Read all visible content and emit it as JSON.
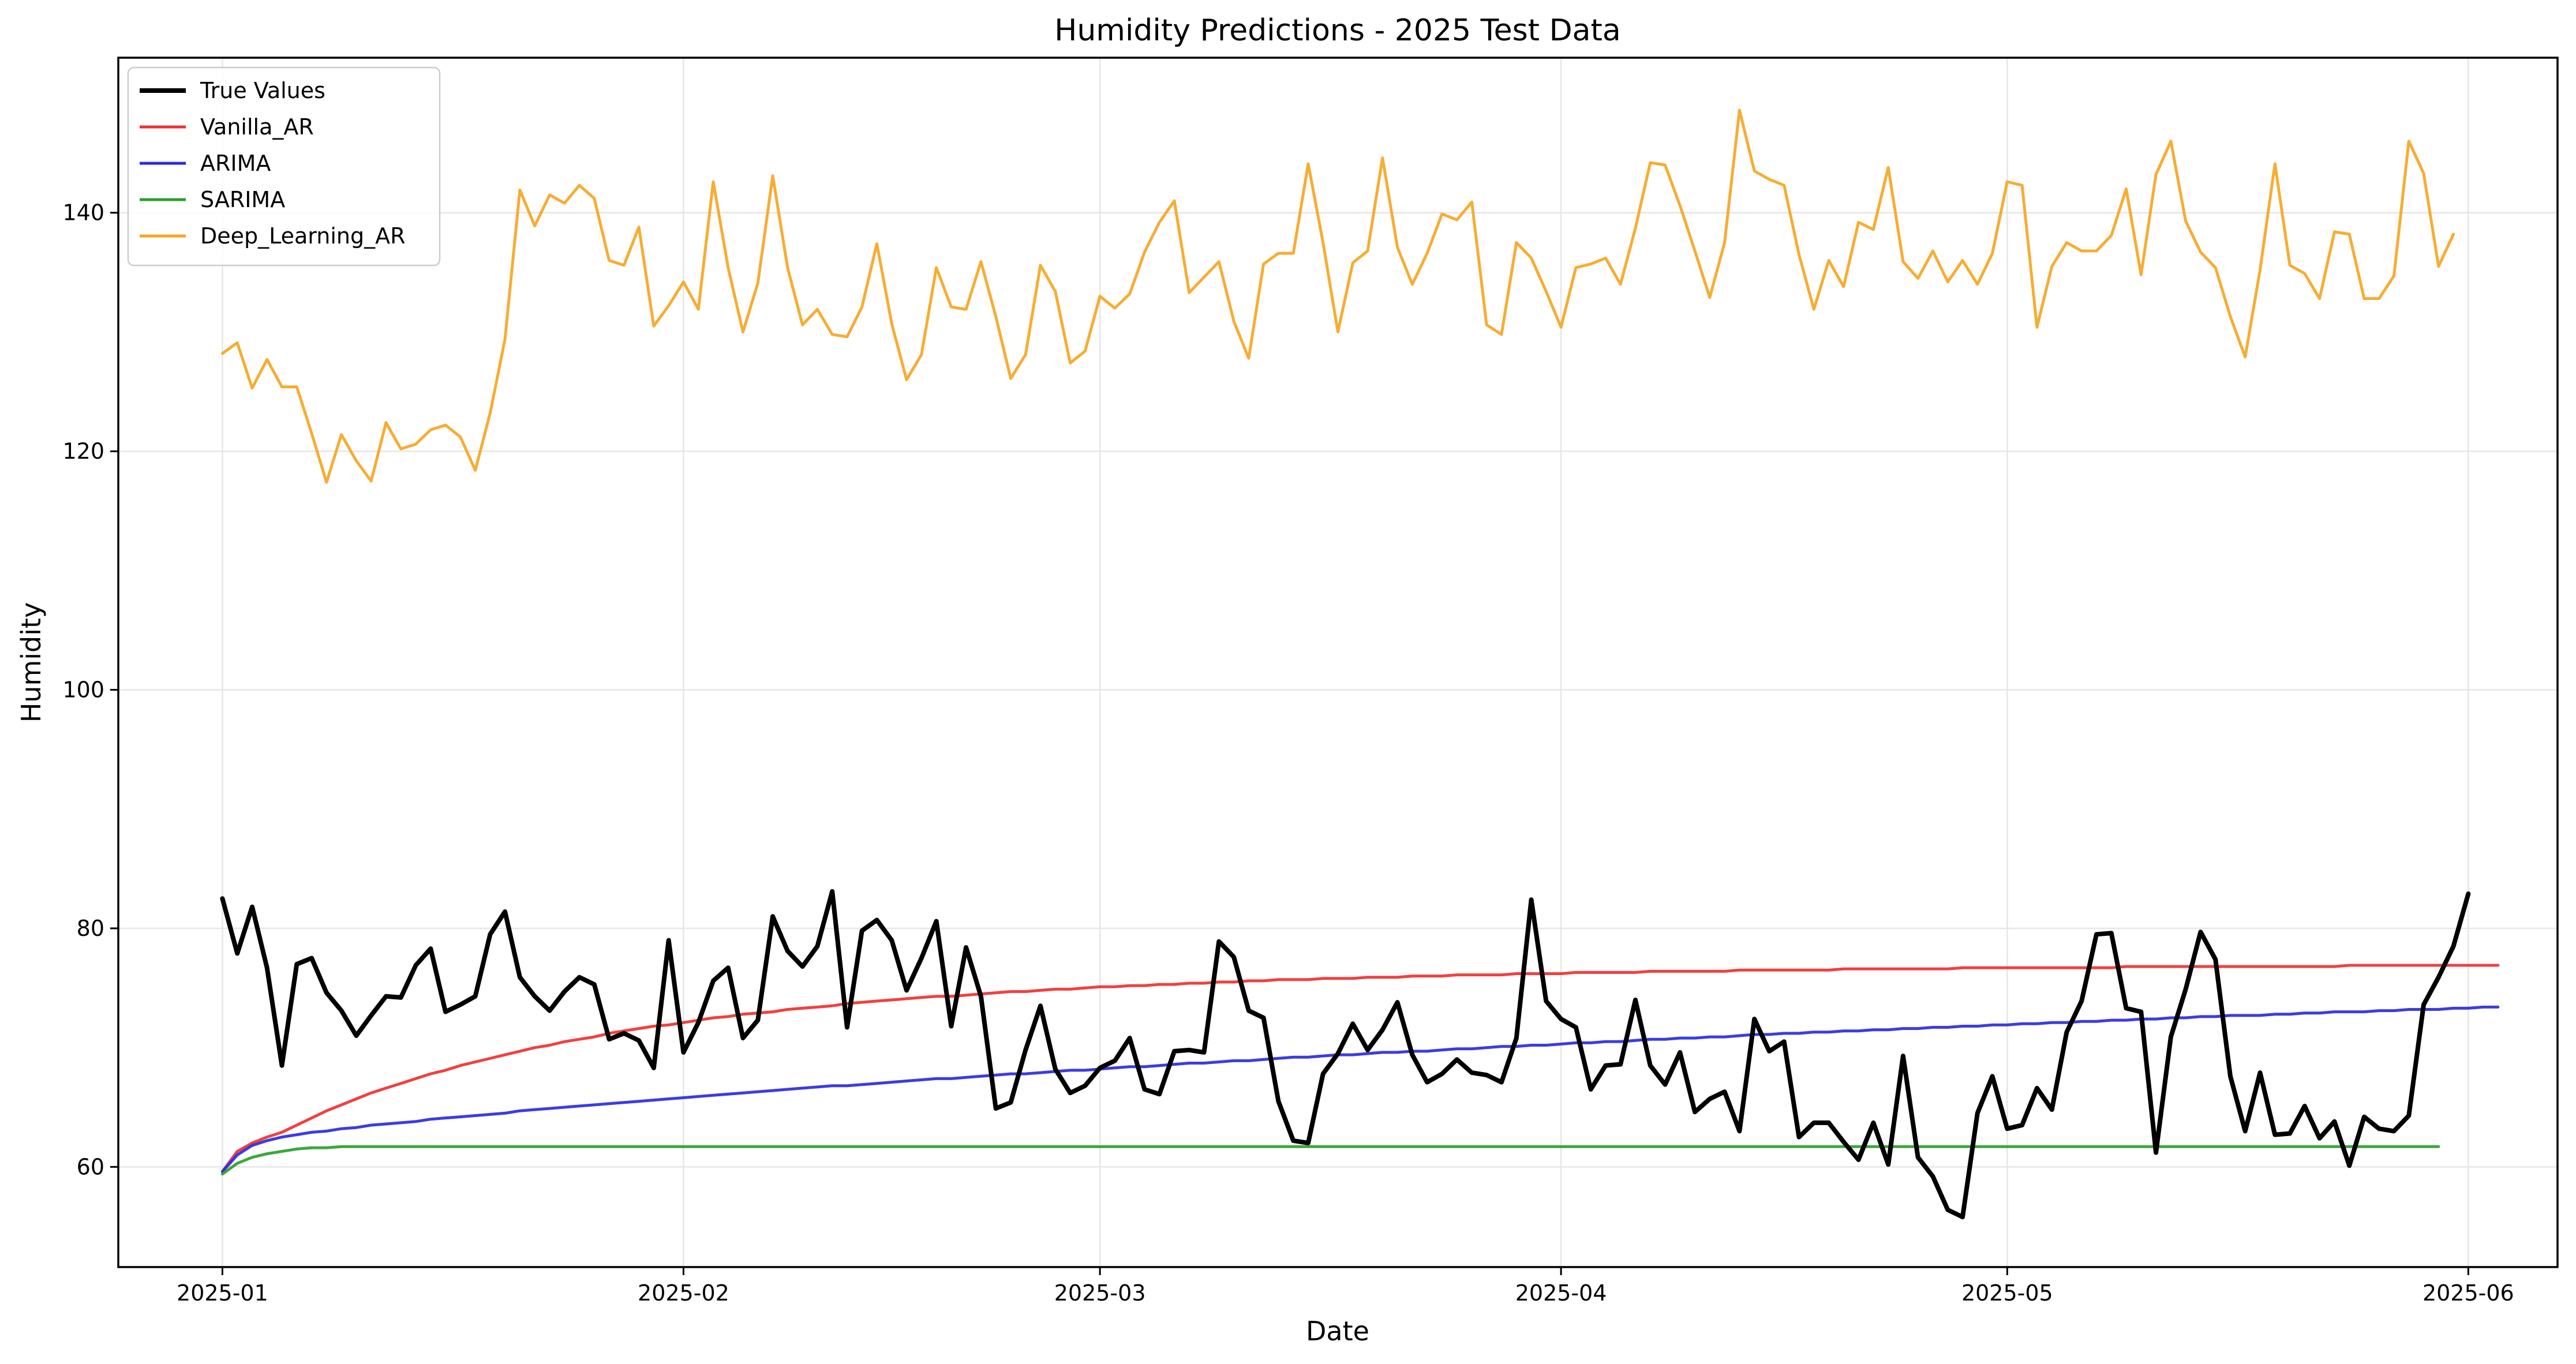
{
  "chart_data": {
    "type": "line",
    "title": "Humidity Predictions - 2025 Test Data",
    "xlabel": "Date",
    "ylabel": "Humidity",
    "x_start": "2025-01-01",
    "x_end": "2025-05-31",
    "xlim": [
      "2024-12-25",
      "2025-06-07"
    ],
    "ylim": [
      51.6,
      153.0
    ],
    "x_ticks": [
      "2025-01-01",
      "2025-02-01",
      "2025-03-01",
      "2025-04-01",
      "2025-05-01",
      "2025-06-01"
    ],
    "x_tick_labels": [
      "2025-01",
      "2025-02",
      "2025-03",
      "2025-04",
      "2025-05",
      "2025-06"
    ],
    "y_ticks": [
      60,
      80,
      100,
      120,
      140
    ],
    "grid": true,
    "legend_position": "top-left",
    "series": [
      {
        "name": "True Values",
        "color": "#000000",
        "values": [
          82.5,
          77.9,
          81.8,
          76.7,
          68.5,
          77.0,
          77.5,
          74.6,
          73.1,
          71.0,
          72.7,
          74.3,
          74.2,
          76.9,
          78.3,
          73.0,
          73.6,
          74.3,
          79.5,
          81.4,
          75.9,
          74.3,
          73.1,
          74.7,
          75.9,
          75.3,
          70.7,
          71.2,
          70.6,
          68.3,
          79.0,
          69.6,
          72.1,
          75.6,
          76.7,
          70.8,
          72.3,
          81.0,
          78.1,
          76.8,
          78.5,
          83.1,
          71.7,
          79.8,
          80.7,
          79.0,
          74.8,
          77.5,
          80.6,
          71.8,
          78.4,
          74.3,
          64.9,
          65.4,
          69.8,
          73.5,
          68.2,
          66.2,
          66.8,
          68.3,
          68.9,
          70.8,
          66.5,
          66.1,
          69.7,
          69.8,
          69.6,
          78.9,
          77.6,
          73.1,
          72.5,
          65.5,
          62.2,
          62.0,
          67.8,
          69.5,
          72.0,
          69.8,
          71.5,
          73.8,
          69.4,
          67.1,
          67.8,
          69.0,
          67.9,
          67.7,
          67.1,
          70.8,
          82.4,
          73.9,
          72.4,
          71.7,
          66.5,
          68.5,
          68.6,
          74.0,
          68.5,
          66.9,
          69.6,
          64.6,
          65.7,
          66.3,
          63.0,
          72.4,
          69.7,
          70.5,
          62.5,
          63.7,
          63.7,
          62.1,
          60.6,
          63.7,
          60.2,
          69.3,
          60.8,
          59.2,
          56.4,
          55.8,
          64.5,
          67.6,
          63.2,
          63.5,
          66.6,
          64.8,
          71.3,
          73.9,
          79.5,
          79.6,
          73.3,
          73.0,
          61.2,
          70.9,
          74.9,
          79.7,
          77.4,
          67.6,
          63.0,
          67.9,
          62.7,
          62.8,
          65.1,
          62.4,
          63.8,
          60.1,
          64.2,
          63.2,
          63.0,
          64.3,
          73.6,
          75.9,
          78.5,
          82.9
        ]
      },
      {
        "name": "Vanilla_AR",
        "color": "#f03030",
        "values": [
          59.6,
          61.3,
          62.0,
          62.5,
          62.9,
          63.5,
          64.1,
          64.7,
          65.2,
          65.7,
          66.2,
          66.6,
          67.0,
          67.4,
          67.8,
          68.1,
          68.5,
          68.8,
          69.1,
          69.4,
          69.7,
          70.0,
          70.2,
          70.5,
          70.7,
          70.9,
          71.2,
          71.4,
          71.6,
          71.8,
          71.9,
          72.1,
          72.3,
          72.5,
          72.6,
          72.8,
          72.9,
          73.0,
          73.2,
          73.3,
          73.4,
          73.5,
          73.7,
          73.8,
          73.9,
          74.0,
          74.1,
          74.2,
          74.3,
          74.3,
          74.4,
          74.5,
          74.6,
          74.7,
          74.7,
          74.8,
          74.9,
          74.9,
          75.0,
          75.1,
          75.1,
          75.2,
          75.2,
          75.3,
          75.3,
          75.4,
          75.4,
          75.5,
          75.5,
          75.6,
          75.6,
          75.7,
          75.7,
          75.7,
          75.8,
          75.8,
          75.8,
          75.9,
          75.9,
          75.9,
          76.0,
          76.0,
          76.0,
          76.1,
          76.1,
          76.1,
          76.1,
          76.2,
          76.2,
          76.2,
          76.2,
          76.3,
          76.3,
          76.3,
          76.3,
          76.3,
          76.4,
          76.4,
          76.4,
          76.4,
          76.4,
          76.4,
          76.5,
          76.5,
          76.5,
          76.5,
          76.5,
          76.5,
          76.5,
          76.6,
          76.6,
          76.6,
          76.6,
          76.6,
          76.6,
          76.6,
          76.6,
          76.7,
          76.7,
          76.7,
          76.7,
          76.7,
          76.7,
          76.7,
          76.7,
          76.7,
          76.7,
          76.7,
          76.8,
          76.8,
          76.8,
          76.8,
          76.8,
          76.8,
          76.8,
          76.8,
          76.8,
          76.8,
          76.8,
          76.8,
          76.8,
          76.8,
          76.8,
          76.9,
          76.9,
          76.9,
          76.9,
          76.9,
          76.9,
          76.9,
          76.9,
          76.9,
          76.9,
          76.9
        ]
      },
      {
        "name": "ARIMA",
        "color": "#2b2be0",
        "values": [
          59.6,
          61.0,
          61.8,
          62.2,
          62.5,
          62.7,
          62.9,
          63.0,
          63.2,
          63.3,
          63.5,
          63.6,
          63.7,
          63.8,
          64.0,
          64.1,
          64.2,
          64.3,
          64.4,
          64.5,
          64.7,
          64.8,
          64.9,
          65.0,
          65.1,
          65.2,
          65.3,
          65.4,
          65.5,
          65.6,
          65.7,
          65.8,
          65.9,
          66.0,
          66.1,
          66.2,
          66.3,
          66.4,
          66.5,
          66.6,
          66.7,
          66.8,
          66.8,
          66.9,
          67.0,
          67.1,
          67.2,
          67.3,
          67.4,
          67.4,
          67.5,
          67.6,
          67.7,
          67.8,
          67.8,
          67.9,
          68.0,
          68.1,
          68.1,
          68.2,
          68.3,
          68.4,
          68.4,
          68.5,
          68.6,
          68.7,
          68.7,
          68.8,
          68.9,
          68.9,
          69.0,
          69.1,
          69.2,
          69.2,
          69.3,
          69.4,
          69.4,
          69.5,
          69.6,
          69.6,
          69.7,
          69.7,
          69.8,
          69.9,
          69.9,
          70.0,
          70.1,
          70.1,
          70.2,
          70.2,
          70.3,
          70.4,
          70.4,
          70.5,
          70.5,
          70.6,
          70.7,
          70.7,
          70.8,
          70.8,
          70.9,
          70.9,
          71.0,
          71.1,
          71.1,
          71.2,
          71.2,
          71.3,
          71.3,
          71.4,
          71.4,
          71.5,
          71.5,
          71.6,
          71.6,
          71.7,
          71.7,
          71.8,
          71.8,
          71.9,
          71.9,
          72.0,
          72.0,
          72.1,
          72.1,
          72.2,
          72.2,
          72.3,
          72.3,
          72.4,
          72.4,
          72.5,
          72.5,
          72.6,
          72.6,
          72.7,
          72.7,
          72.7,
          72.8,
          72.8,
          72.9,
          72.9,
          73.0,
          73.0,
          73.0,
          73.1,
          73.1,
          73.2,
          73.2,
          73.2,
          73.3,
          73.3,
          73.4,
          73.4
        ]
      },
      {
        "name": "SARIMA",
        "color": "#2ca02c",
        "values": [
          59.4,
          60.3,
          60.8,
          61.1,
          61.3,
          61.5,
          61.6,
          61.6,
          61.7,
          61.7,
          61.7,
          61.7,
          61.7,
          61.7,
          61.7,
          61.7,
          61.7,
          61.7,
          61.7,
          61.7,
          61.7,
          61.7,
          61.7,
          61.7,
          61.7,
          61.7,
          61.7,
          61.7,
          61.7,
          61.7,
          61.7,
          61.7,
          61.7,
          61.7,
          61.7,
          61.7,
          61.7,
          61.7,
          61.7,
          61.7,
          61.7,
          61.7,
          61.7,
          61.7,
          61.7,
          61.7,
          61.7,
          61.7,
          61.7,
          61.7,
          61.7,
          61.7,
          61.7,
          61.7,
          61.7,
          61.7,
          61.7,
          61.7,
          61.7,
          61.7,
          61.7,
          61.7,
          61.7,
          61.7,
          61.7,
          61.7,
          61.7,
          61.7,
          61.7,
          61.7,
          61.7,
          61.7,
          61.7,
          61.7,
          61.7,
          61.7,
          61.7,
          61.7,
          61.7,
          61.7,
          61.7,
          61.7,
          61.7,
          61.7,
          61.7,
          61.7,
          61.7,
          61.7,
          61.7,
          61.7,
          61.7,
          61.7,
          61.7,
          61.7,
          61.7,
          61.7,
          61.7,
          61.7,
          61.7,
          61.7,
          61.7,
          61.7,
          61.7,
          61.7,
          61.7,
          61.7,
          61.7,
          61.7,
          61.7,
          61.7,
          61.7,
          61.7,
          61.7,
          61.7,
          61.7,
          61.7,
          61.7,
          61.7,
          61.7,
          61.7,
          61.7,
          61.7,
          61.7,
          61.7,
          61.7,
          61.7,
          61.7,
          61.7,
          61.7,
          61.7,
          61.7,
          61.7,
          61.7,
          61.7,
          61.7,
          61.7,
          61.7,
          61.7,
          61.7,
          61.7,
          61.7,
          61.7,
          61.7,
          61.7,
          61.7,
          61.7,
          61.7,
          61.7,
          61.7,
          61.7
        ]
      },
      {
        "name": "Deep_Learning_AR",
        "color": "#f5a623",
        "values": [
          128.2,
          129.1,
          125.3,
          127.7,
          125.4,
          125.4,
          121.5,
          117.4,
          121.4,
          119.2,
          117.5,
          122.4,
          120.2,
          120.6,
          121.8,
          122.2,
          121.2,
          118.4,
          123.2,
          129.4,
          141.9,
          138.9,
          141.5,
          140.8,
          142.3,
          141.2,
          136.0,
          135.6,
          138.8,
          130.5,
          132.2,
          134.2,
          131.9,
          142.6,
          135.4,
          130.0,
          134.1,
          143.1,
          135.4,
          130.6,
          131.9,
          129.8,
          129.6,
          132.1,
          137.4,
          130.7,
          126.0,
          128.1,
          135.4,
          132.1,
          131.9,
          135.9,
          131.3,
          126.1,
          128.1,
          135.6,
          133.4,
          127.4,
          128.4,
          133.0,
          132.0,
          133.2,
          136.7,
          139.2,
          141.0,
          133.3,
          134.6,
          135.9,
          130.9,
          127.8,
          135.7,
          136.6,
          136.6,
          144.1,
          137.5,
          130.0,
          135.8,
          136.8,
          144.6,
          137.1,
          134.0,
          136.6,
          139.9,
          139.4,
          140.9,
          130.6,
          129.8,
          137.5,
          136.2,
          133.4,
          130.4,
          135.4,
          135.7,
          136.2,
          134.0,
          138.7,
          144.2,
          144.0,
          140.6,
          136.8,
          132.9,
          137.5,
          148.6,
          143.5,
          142.8,
          142.3,
          136.5,
          131.9,
          136.0,
          133.8,
          139.2,
          138.6,
          143.8,
          135.9,
          134.5,
          136.8,
          134.2,
          136.0,
          134.0,
          136.6,
          142.6,
          142.3,
          130.4,
          135.5,
          137.5,
          136.8,
          136.8,
          138.1,
          142.0,
          134.8,
          143.2,
          146.0,
          139.3,
          136.7,
          135.4,
          131.3,
          127.9,
          135.2,
          144.1,
          135.6,
          134.9,
          132.8,
          138.4,
          138.2,
          132.8,
          132.8,
          134.7,
          146.0,
          143.3,
          135.5,
          138.2
        ]
      }
    ]
  }
}
